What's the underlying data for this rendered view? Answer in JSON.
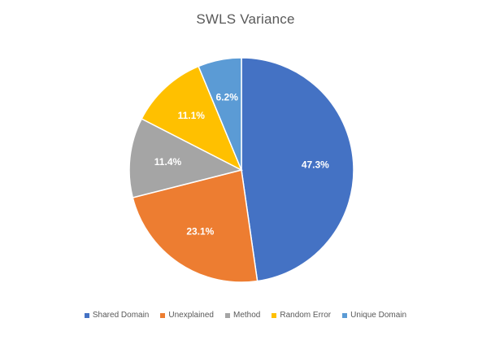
{
  "chart_data": {
    "type": "pie",
    "title": "SWLS Variance",
    "categories": [
      "Shared Domain",
      "Unexplained",
      "Method",
      "Random Error",
      "Unique Domain"
    ],
    "values": [
      47.3,
      23.1,
      11.4,
      11.1,
      6.2
    ],
    "labels": [
      "47.3%",
      "23.1%",
      "11.4%",
      "11.1%",
      "6.2%"
    ],
    "colors": [
      "#4472C4",
      "#ED7D31",
      "#A5A5A5",
      "#FFC000",
      "#5B9BD5"
    ],
    "legend_position": "bottom"
  }
}
